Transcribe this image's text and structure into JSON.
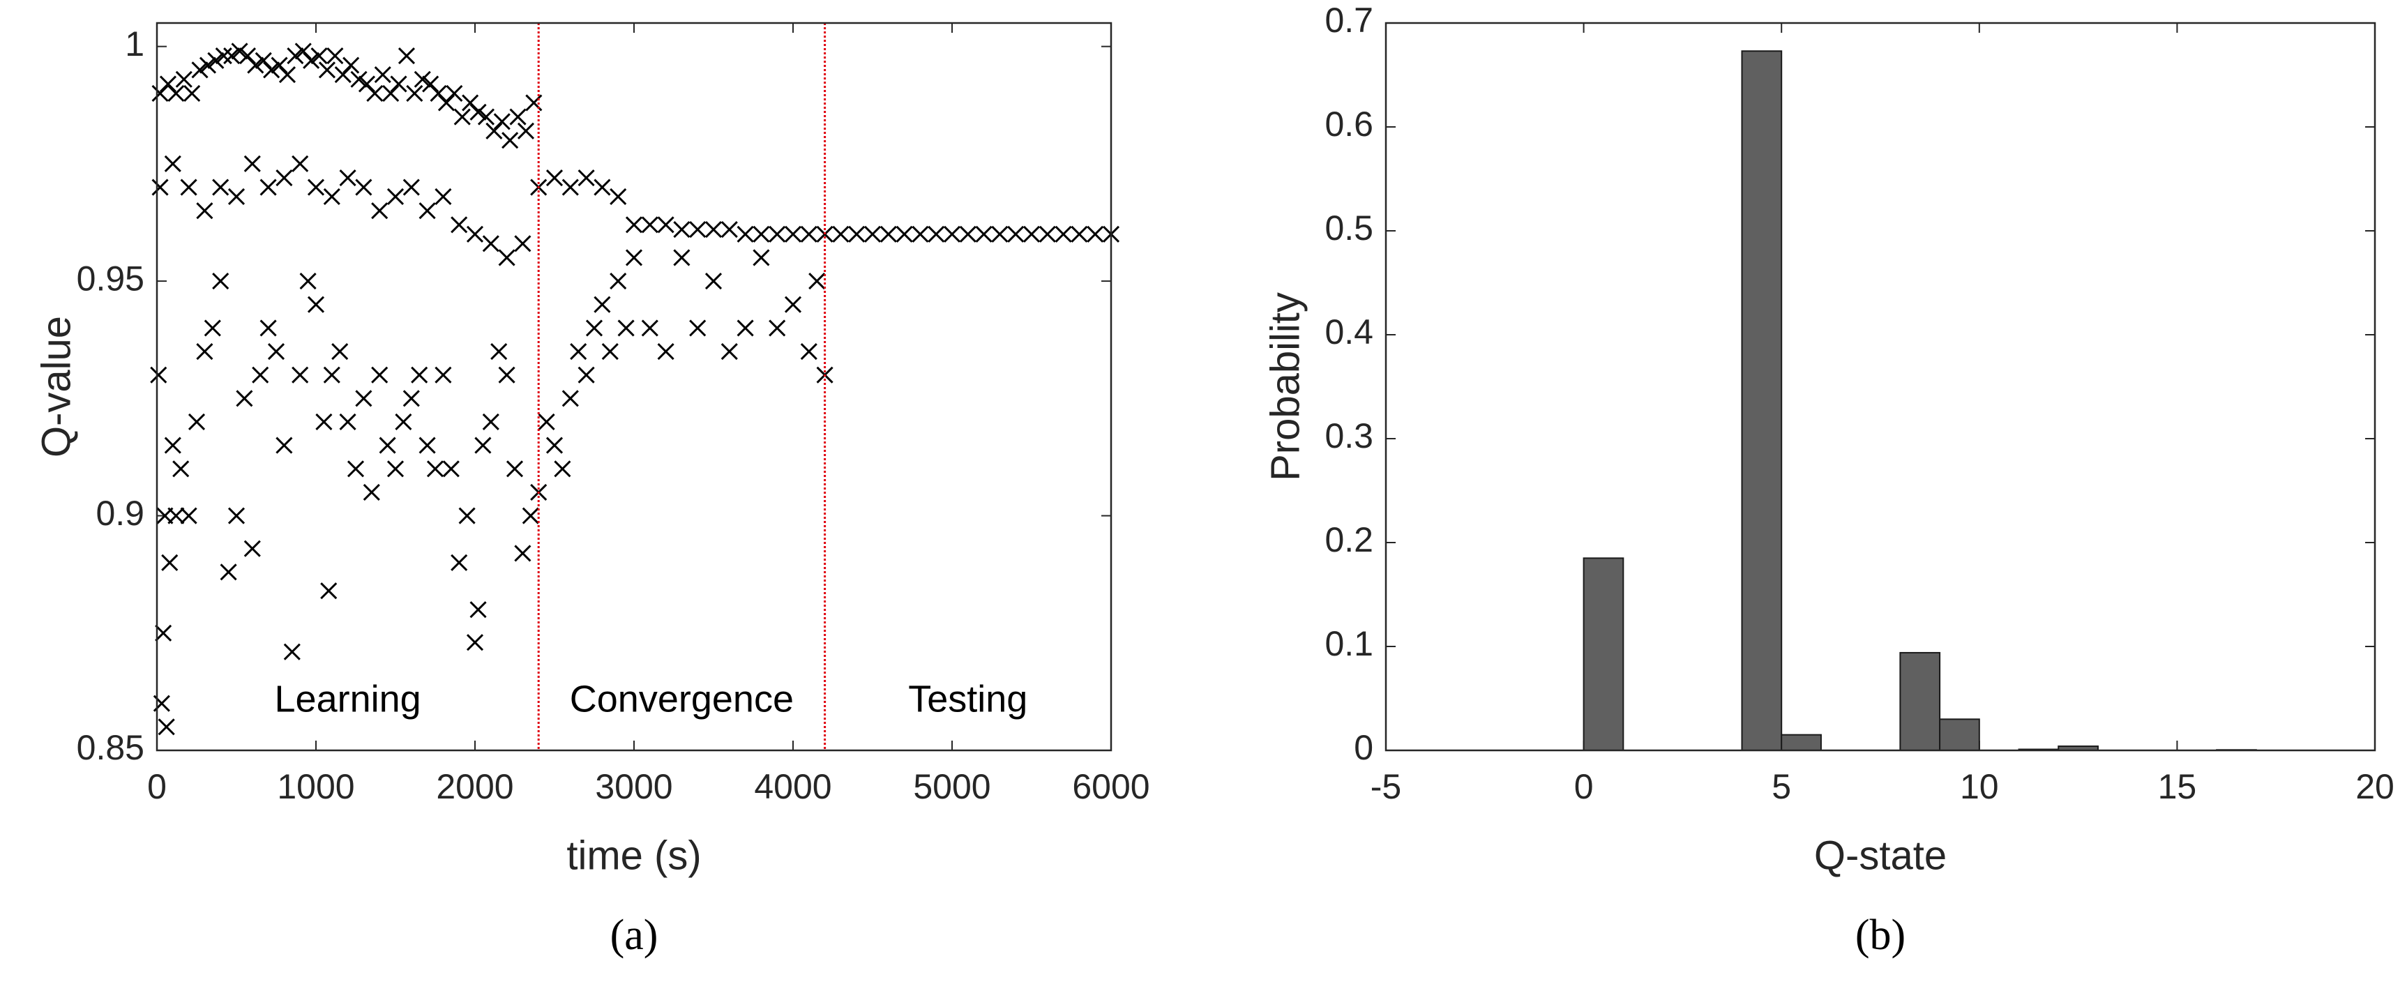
{
  "chart_data": [
    {
      "type": "scatter",
      "label": "(a)",
      "x_label": "time (s)",
      "y_label": "Q-value",
      "color": "#000000",
      "marker": "x",
      "xlim": [
        0,
        6000
      ],
      "xticks": [
        0,
        1000,
        2000,
        3000,
        4000,
        5000,
        6000
      ],
      "ylim": [
        0.85,
        1.005
      ],
      "yticks": [
        0.85,
        0.9,
        0.95,
        1
      ],
      "vlines": [
        2400,
        4200
      ],
      "vline_color": "#e0000f",
      "annotations": [
        "Learning",
        "Convergence",
        "Testing"
      ],
      "x": [
        20,
        70,
        120,
        170,
        220,
        270,
        320,
        370,
        420,
        470,
        520,
        570,
        620,
        670,
        720,
        770,
        820,
        870,
        920,
        970,
        1020,
        1070,
        1120,
        1170,
        1220,
        1270,
        1320,
        1370,
        1420,
        1470,
        1520,
        1570,
        1620,
        1670,
        1720,
        1770,
        1820,
        1870,
        1920,
        1970,
        2020,
        2070,
        2120,
        2170,
        2220,
        2270,
        2320,
        2370,
        20,
        100,
        200,
        300,
        400,
        500,
        600,
        700,
        800,
        900,
        1000,
        1100,
        1200,
        1300,
        1400,
        1500,
        1600,
        1700,
        1800,
        1900,
        2000,
        2100,
        2200,
        2300,
        10,
        30,
        40,
        50,
        60,
        80,
        100,
        120,
        150,
        200,
        250,
        300,
        350,
        400,
        450,
        500,
        550,
        600,
        650,
        700,
        750,
        800,
        850,
        900,
        950,
        1000,
        1050,
        1080,
        1100,
        1150,
        1200,
        1250,
        1300,
        1350,
        1400,
        1450,
        1500,
        1550,
        1600,
        1650,
        1700,
        1750,
        1800,
        1850,
        1900,
        1950,
        2000,
        2020,
        2050,
        2100,
        2150,
        2200,
        2250,
        2300,
        2350,
        2400,
        2500,
        2600,
        2700,
        2800,
        2900,
        3000,
        3100,
        3200,
        3300,
        3400,
        3500,
        3600,
        3700,
        3800,
        3900,
        4000,
        4100,
        4200,
        2400,
        2450,
        2500,
        2550,
        2600,
        2650,
        2700,
        2750,
        2800,
        2850,
        2900,
        2950,
        3000,
        3100,
        3200,
        3300,
        3400,
        3500,
        3600,
        3700,
        3800,
        3900,
        4000,
        4100,
        4150,
        4200,
        4300,
        4400,
        4500,
        4600,
        4700,
        4800,
        4900,
        5000,
        5100,
        5200,
        5300,
        5400,
        5500,
        5600,
        5700,
        5800,
        5900,
        6000
      ],
      "values": [
        0.99,
        0.992,
        0.99,
        0.993,
        0.99,
        0.995,
        0.996,
        0.997,
        0.998,
        0.998,
        0.999,
        0.998,
        0.996,
        0.997,
        0.995,
        0.996,
        0.994,
        0.998,
        0.999,
        0.997,
        0.998,
        0.995,
        0.998,
        0.994,
        0.996,
        0.993,
        0.992,
        0.99,
        0.994,
        0.99,
        0.992,
        0.998,
        0.99,
        0.993,
        0.992,
        0.99,
        0.988,
        0.99,
        0.985,
        0.988,
        0.986,
        0.985,
        0.982,
        0.984,
        0.98,
        0.985,
        0.982,
        0.988,
        0.97,
        0.975,
        0.97,
        0.965,
        0.97,
        0.968,
        0.975,
        0.97,
        0.972,
        0.975,
        0.97,
        0.968,
        0.972,
        0.97,
        0.965,
        0.968,
        0.97,
        0.965,
        0.968,
        0.962,
        0.96,
        0.958,
        0.955,
        0.958,
        0.93,
        0.86,
        0.875,
        0.9,
        0.855,
        0.89,
        0.915,
        0.9,
        0.91,
        0.9,
        0.92,
        0.935,
        0.94,
        0.95,
        0.888,
        0.9,
        0.925,
        0.893,
        0.93,
        0.94,
        0.935,
        0.915,
        0.871,
        0.93,
        0.95,
        0.945,
        0.92,
        0.884,
        0.93,
        0.935,
        0.92,
        0.91,
        0.925,
        0.905,
        0.93,
        0.915,
        0.91,
        0.92,
        0.925,
        0.93,
        0.915,
        0.91,
        0.93,
        0.91,
        0.89,
        0.9,
        0.873,
        0.88,
        0.915,
        0.92,
        0.935,
        0.93,
        0.91,
        0.892,
        0.9,
        0.97,
        0.972,
        0.97,
        0.972,
        0.97,
        0.968,
        0.962,
        0.962,
        0.962,
        0.961,
        0.961,
        0.961,
        0.961,
        0.96,
        0.96,
        0.96,
        0.96,
        0.96,
        0.96,
        0.905,
        0.92,
        0.915,
        0.91,
        0.925,
        0.935,
        0.93,
        0.94,
        0.945,
        0.935,
        0.95,
        0.94,
        0.955,
        0.94,
        0.935,
        0.955,
        0.94,
        0.95,
        0.935,
        0.94,
        0.955,
        0.94,
        0.945,
        0.935,
        0.95,
        0.93,
        0.96,
        0.96,
        0.96,
        0.96,
        0.96,
        0.96,
        0.96,
        0.96,
        0.96,
        0.96,
        0.96,
        0.96,
        0.96,
        0.96,
        0.96,
        0.96,
        0.96,
        0.96
      ]
    },
    {
      "type": "histogram",
      "label": "(b)",
      "x_label": "Q-state",
      "y_label": "Probability",
      "color": "#606060",
      "edge_color": "#1a1a1a",
      "xlim": [
        -5,
        20
      ],
      "xticks": [
        -5,
        0,
        5,
        10,
        15,
        20
      ],
      "ylim": [
        0,
        0.7
      ],
      "yticks": [
        0,
        0.1,
        0.2,
        0.3,
        0.4,
        0.5,
        0.6,
        0.7
      ],
      "bins": [
        0,
        1,
        2,
        3,
        4,
        5,
        6,
        7,
        8,
        9,
        10,
        11,
        12,
        13,
        14,
        15,
        16,
        17,
        18
      ],
      "values": [
        0.185,
        0,
        0,
        0,
        0.673,
        0.015,
        0,
        0,
        0.094,
        0.03,
        0,
        0.001,
        0.004,
        0,
        0,
        0,
        0.0005,
        0
      ]
    }
  ]
}
